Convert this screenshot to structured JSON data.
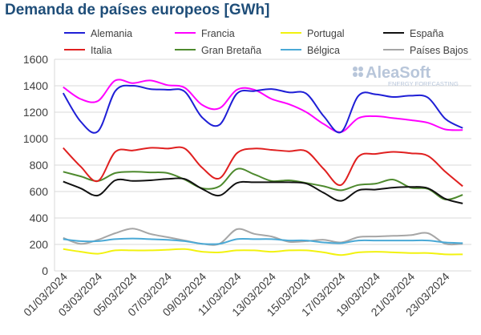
{
  "chart_data": {
    "type": "line",
    "title": "Demanda de países europeos [GWh]",
    "x": [
      "01/03/2024",
      "02/03/2024",
      "03/03/2024",
      "04/03/2024",
      "05/03/2024",
      "06/03/2024",
      "07/03/2024",
      "08/03/2024",
      "09/03/2024",
      "10/03/2024",
      "11/03/2024",
      "12/03/2024",
      "13/03/2024",
      "14/03/2024",
      "15/03/2024",
      "16/03/2024",
      "17/03/2024",
      "18/03/2024",
      "19/03/2024",
      "20/03/2024",
      "21/03/2024",
      "22/03/2024",
      "23/03/2024",
      "24/03/2024"
    ],
    "xticks": [
      "01/03/2024",
      "03/03/2024",
      "05/03/2024",
      "07/03/2024",
      "09/03/2024",
      "11/03/2024",
      "13/03/2024",
      "15/03/2024",
      "17/03/2024",
      "19/03/2024",
      "21/03/2024",
      "23/03/2024"
    ],
    "ylim": [
      0,
      1600
    ],
    "yticks": [
      0,
      200,
      400,
      600,
      800,
      1000,
      1200,
      1400,
      1600
    ],
    "grid": true,
    "legend_position": "top",
    "series": [
      {
        "name": "Alemania",
        "color": "#1f1fd6",
        "values": [
          1345,
          1130,
          1055,
          1360,
          1400,
          1375,
          1370,
          1355,
          1160,
          1105,
          1340,
          1360,
          1375,
          1350,
          1340,
          1170,
          1050,
          1325,
          1335,
          1315,
          1325,
          1310,
          1150,
          1080
        ]
      },
      {
        "name": "Francia",
        "color": "#ff00ff",
        "values": [
          1390,
          1300,
          1285,
          1440,
          1420,
          1440,
          1405,
          1385,
          1255,
          1230,
          1370,
          1370,
          1300,
          1260,
          1200,
          1110,
          1050,
          1155,
          1170,
          1155,
          1140,
          1120,
          1070,
          1065
        ]
      },
      {
        "name": "Portugal",
        "color": "#f2f20f",
        "values": [
          165,
          145,
          130,
          155,
          155,
          155,
          160,
          165,
          145,
          140,
          155,
          155,
          145,
          155,
          155,
          140,
          120,
          140,
          145,
          140,
          135,
          135,
          125,
          125
        ]
      },
      {
        "name": "España",
        "color": "#111111",
        "values": [
          675,
          625,
          570,
          685,
          680,
          685,
          695,
          695,
          620,
          570,
          665,
          670,
          670,
          670,
          660,
          590,
          530,
          610,
          615,
          630,
          635,
          625,
          545,
          510
        ]
      },
      {
        "name": "Italia",
        "color": "#e02020",
        "values": [
          930,
          790,
          680,
          900,
          910,
          930,
          925,
          925,
          780,
          700,
          890,
          925,
          915,
          905,
          905,
          770,
          650,
          865,
          885,
          900,
          890,
          870,
          750,
          640
        ]
      },
      {
        "name": "Gran Bretaña",
        "color": "#4e8a2e",
        "values": [
          750,
          715,
          680,
          740,
          750,
          745,
          740,
          690,
          625,
          640,
          770,
          730,
          680,
          685,
          665,
          640,
          610,
          650,
          660,
          690,
          630,
          620,
          540,
          575
        ]
      },
      {
        "name": "Bélgica",
        "color": "#4aa9d6",
        "values": [
          240,
          225,
          225,
          240,
          245,
          240,
          235,
          225,
          205,
          205,
          240,
          240,
          240,
          230,
          230,
          215,
          210,
          230,
          230,
          230,
          230,
          230,
          215,
          210
        ]
      },
      {
        "name": "Países Bajos",
        "color": "#a6a6a6",
        "values": [
          250,
          205,
          235,
          285,
          320,
          280,
          255,
          230,
          205,
          205,
          315,
          280,
          260,
          220,
          225,
          235,
          215,
          255,
          260,
          265,
          270,
          285,
          205,
          205
        ]
      }
    ]
  },
  "logo": {
    "name": "AleaSoft",
    "tagline": "ENERGY FORECASTING"
  }
}
